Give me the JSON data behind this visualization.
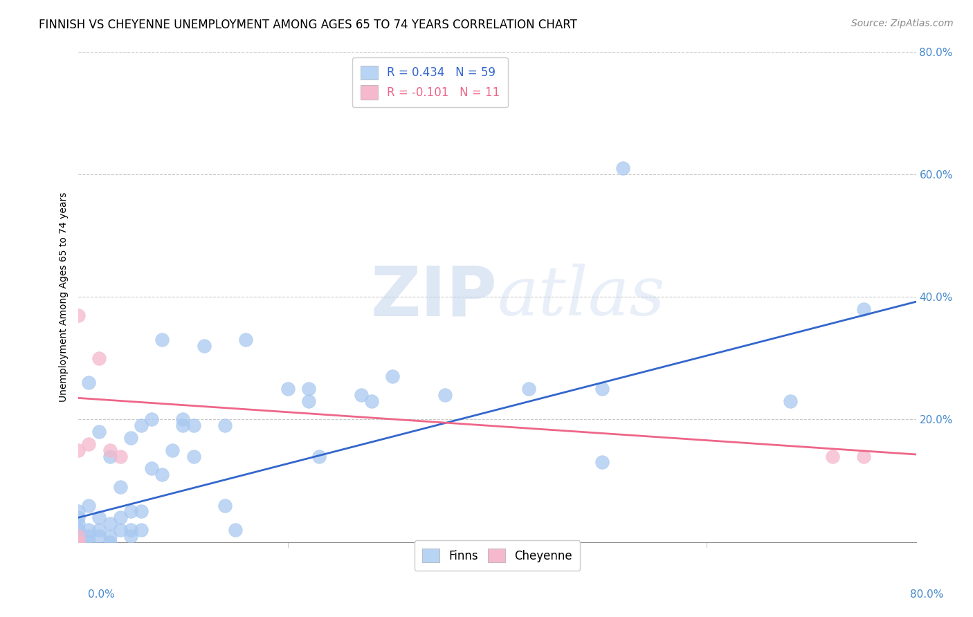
{
  "title": "FINNISH VS CHEYENNE UNEMPLOYMENT AMONG AGES 65 TO 74 YEARS CORRELATION CHART",
  "source": "Source: ZipAtlas.com",
  "ylabel": "Unemployment Among Ages 65 to 74 years",
  "xlim": [
    0,
    0.8
  ],
  "ylim": [
    0,
    0.8
  ],
  "yticks": [
    0.0,
    0.2,
    0.4,
    0.6,
    0.8
  ],
  "yticklabels": [
    "",
    "20.0%",
    "40.0%",
    "60.0%",
    "80.0%"
  ],
  "finns_color": "#A8C8F0",
  "cheyenne_color": "#F5B8CC",
  "finns_line_color": "#3366CC",
  "cheyenne_line_color": "#EE6688",
  "legend_box_color_finns": "#B8D4F4",
  "legend_box_color_cheyenne": "#F5B8CC",
  "R_finns": 0.434,
  "N_finns": 59,
  "R_cheyenne": -0.101,
  "N_cheyenne": 11,
  "finns_x": [
    0.0,
    0.0,
    0.0,
    0.0,
    0.0,
    0.0,
    0.0,
    0.0,
    0.01,
    0.01,
    0.01,
    0.01,
    0.01,
    0.02,
    0.02,
    0.02,
    0.02,
    0.03,
    0.03,
    0.03,
    0.03,
    0.04,
    0.04,
    0.04,
    0.05,
    0.05,
    0.05,
    0.05,
    0.06,
    0.06,
    0.06,
    0.07,
    0.07,
    0.08,
    0.08,
    0.09,
    0.1,
    0.1,
    0.11,
    0.11,
    0.12,
    0.14,
    0.14,
    0.15,
    0.16,
    0.2,
    0.22,
    0.22,
    0.23,
    0.27,
    0.28,
    0.3,
    0.35,
    0.43,
    0.5,
    0.5,
    0.52,
    0.68,
    0.75
  ],
  "finns_y": [
    0.0,
    0.0,
    0.0,
    0.01,
    0.02,
    0.03,
    0.04,
    0.05,
    0.0,
    0.01,
    0.02,
    0.06,
    0.26,
    0.01,
    0.02,
    0.04,
    0.18,
    0.0,
    0.01,
    0.03,
    0.14,
    0.02,
    0.04,
    0.09,
    0.01,
    0.02,
    0.05,
    0.17,
    0.02,
    0.05,
    0.19,
    0.12,
    0.2,
    0.11,
    0.33,
    0.15,
    0.19,
    0.2,
    0.14,
    0.19,
    0.32,
    0.06,
    0.19,
    0.02,
    0.33,
    0.25,
    0.23,
    0.25,
    0.14,
    0.24,
    0.23,
    0.27,
    0.24,
    0.25,
    0.13,
    0.25,
    0.61,
    0.23,
    0.38
  ],
  "cheyenne_x": [
    0.0,
    0.0,
    0.0,
    0.0,
    0.0,
    0.01,
    0.02,
    0.03,
    0.04,
    0.72,
    0.75
  ],
  "cheyenne_y": [
    0.0,
    0.0,
    0.01,
    0.15,
    0.37,
    0.16,
    0.3,
    0.15,
    0.14,
    0.14,
    0.14
  ],
  "finns_line_y_intercept": 0.04,
  "finns_line_slope": 0.44,
  "cheyenne_line_y_intercept": 0.235,
  "cheyenne_line_slope": -0.115,
  "watermark_zip": "ZIP",
  "watermark_atlas": "atlas",
  "background_color": "#FFFFFF",
  "grid_color": "#BBBBBB",
  "title_fontsize": 12,
  "axis_fontsize": 10,
  "tick_fontsize": 11,
  "legend_fontsize": 12,
  "source_fontsize": 10
}
